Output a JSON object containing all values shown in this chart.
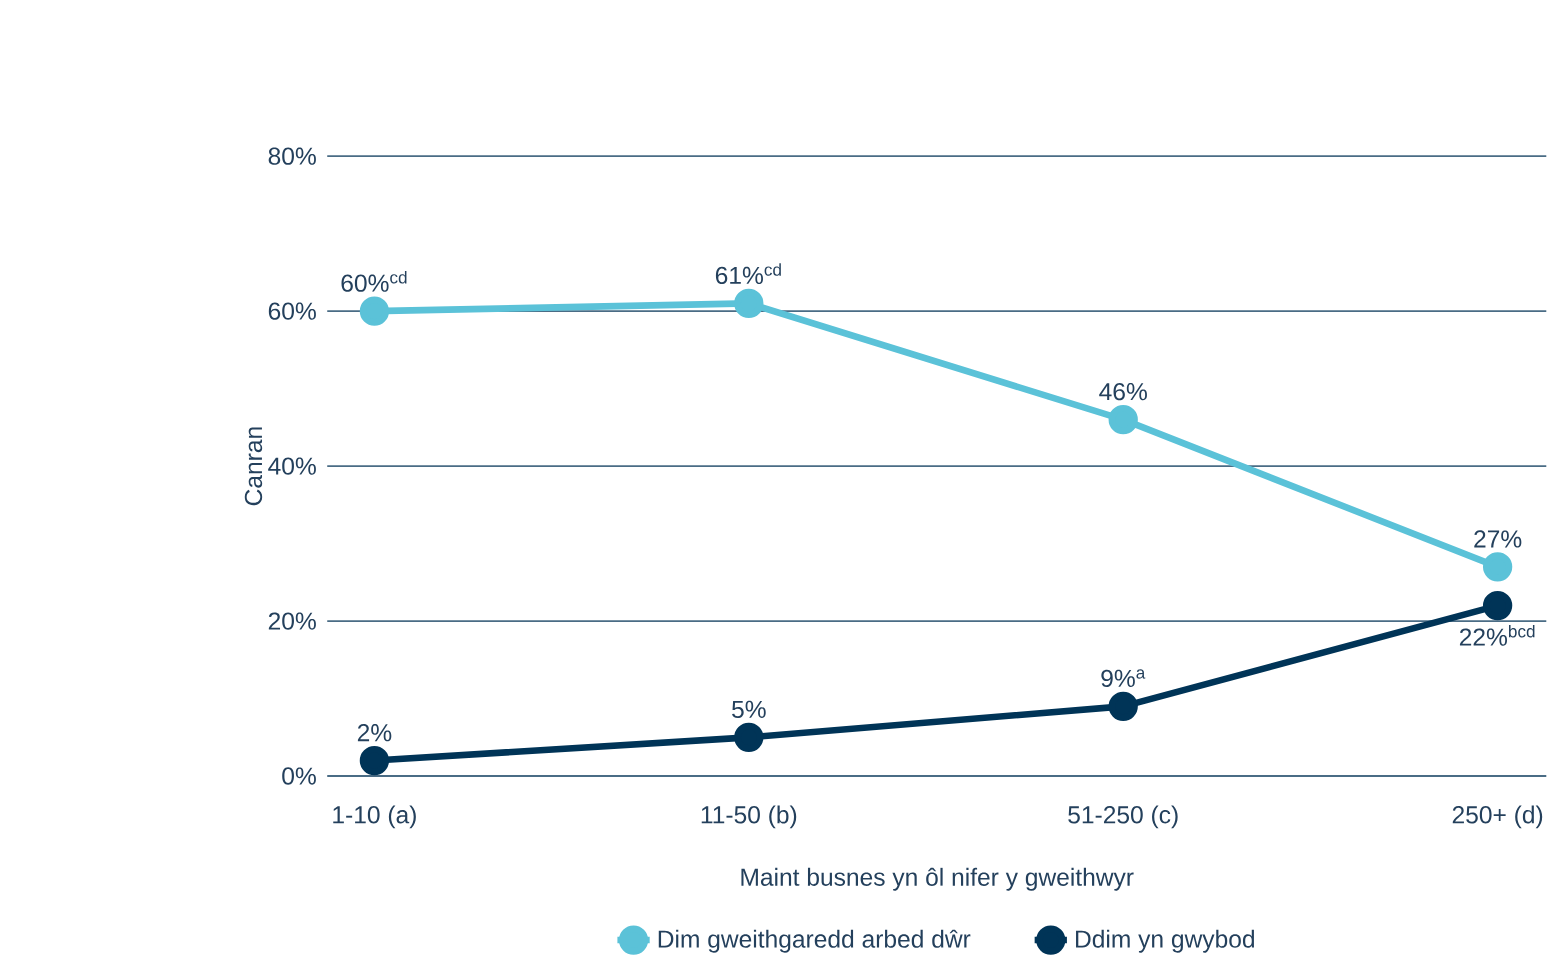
{
  "chart_data": {
    "type": "line",
    "xlabel": "Maint busnes yn ôl nifer y gweithwyr",
    "ylabel": "Canran",
    "categories": [
      "1-10 (a)",
      "11-50 (b)",
      "51-250 (c)",
      "250+ (d)"
    ],
    "series": [
      {
        "name": "Dim gweithgaredd arbed dŵr",
        "color": "#5bc2d8",
        "values": [
          60,
          61,
          46,
          27
        ],
        "value_labels": [
          "60%$^{cd}$",
          "61%$^{cd}$",
          "46%",
          "27%"
        ]
      },
      {
        "name": "Ddim yn gwybod",
        "color": "#003457",
        "values": [
          2,
          5,
          9,
          22
        ],
        "value_labels": [
          "2%",
          "5%",
          "9%$^{a}$",
          "22%$^{bcd}$"
        ]
      }
    ],
    "ylim": [
      0,
      80
    ],
    "yticks": [
      {
        "value": 0,
        "label": "0%"
      },
      {
        "value": 20,
        "label": "20%"
      },
      {
        "value": 40,
        "label": "40%"
      },
      {
        "value": 60,
        "label": "60%"
      },
      {
        "value": 80,
        "label": "80%"
      }
    ],
    "grid": "y",
    "legend": "bottom",
    "marker": "circle",
    "line_style": "solid"
  }
}
